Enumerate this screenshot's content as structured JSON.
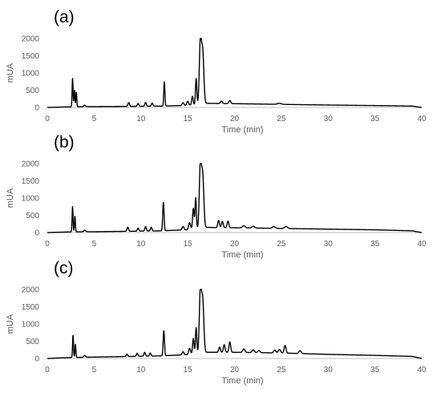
{
  "chart_data": [
    {
      "type": "line",
      "label": "(a)",
      "xlabel": "Time (min)",
      "ylabel": "mUA",
      "xlim": [
        0,
        40
      ],
      "ylim": [
        0,
        2000
      ],
      "xticks": [
        0,
        5,
        10,
        15,
        20,
        25,
        30,
        35,
        40
      ],
      "yticks": [
        0,
        500,
        1000,
        1500,
        2000
      ],
      "grid": false,
      "baseline": [
        [
          0,
          0
        ],
        [
          2.5,
          20
        ],
        [
          5,
          25
        ],
        [
          8,
          30
        ],
        [
          12,
          40
        ],
        [
          15,
          60
        ],
        [
          17,
          120
        ],
        [
          20,
          110
        ],
        [
          25,
          90
        ],
        [
          30,
          70
        ],
        [
          35,
          55
        ],
        [
          39,
          40
        ],
        [
          40,
          0
        ]
      ],
      "peaks": [
        [
          2.7,
          820,
          0.05
        ],
        [
          2.9,
          480,
          0.05
        ],
        [
          3.1,
          420,
          0.05
        ],
        [
          4.0,
          40,
          0.1
        ],
        [
          8.7,
          110,
          0.08
        ],
        [
          9.7,
          80,
          0.08
        ],
        [
          10.5,
          110,
          0.08
        ],
        [
          11.2,
          90,
          0.08
        ],
        [
          12.5,
          700,
          0.06
        ],
        [
          14.5,
          80,
          0.1
        ],
        [
          15.0,
          120,
          0.1
        ],
        [
          15.5,
          250,
          0.08
        ],
        [
          15.9,
          750,
          0.07
        ],
        [
          16.35,
          1820,
          0.11
        ],
        [
          16.6,
          1500,
          0.12
        ],
        [
          18.6,
          70,
          0.1
        ],
        [
          19.5,
          90,
          0.1
        ],
        [
          24.8,
          30,
          0.2
        ]
      ]
    },
    {
      "type": "line",
      "label": "(b)",
      "xlabel": "Time (min)",
      "ylabel": "mUA",
      "xlim": [
        0,
        40
      ],
      "ylim": [
        0,
        2000
      ],
      "xticks": [
        0,
        5,
        10,
        15,
        20,
        25,
        30,
        35,
        40
      ],
      "yticks": [
        0,
        500,
        1000,
        1500,
        2000
      ],
      "grid": false,
      "baseline": [
        [
          0,
          0
        ],
        [
          2.5,
          20
        ],
        [
          5,
          25
        ],
        [
          8,
          35
        ],
        [
          12,
          50
        ],
        [
          15,
          80
        ],
        [
          17,
          150
        ],
        [
          20,
          140
        ],
        [
          25,
          120
        ],
        [
          30,
          100
        ],
        [
          35,
          80
        ],
        [
          39,
          50
        ],
        [
          40,
          0
        ]
      ],
      "peaks": [
        [
          2.7,
          730,
          0.05
        ],
        [
          2.95,
          450,
          0.05
        ],
        [
          4.0,
          50,
          0.1
        ],
        [
          8.6,
          120,
          0.08
        ],
        [
          9.7,
          90,
          0.08
        ],
        [
          10.5,
          130,
          0.08
        ],
        [
          11.1,
          110,
          0.08
        ],
        [
          12.4,
          820,
          0.07
        ],
        [
          14.5,
          100,
          0.1
        ],
        [
          15.2,
          200,
          0.1
        ],
        [
          15.6,
          600,
          0.08
        ],
        [
          15.85,
          900,
          0.07
        ],
        [
          16.35,
          1850,
          0.11
        ],
        [
          16.6,
          1500,
          0.12
        ],
        [
          18.3,
          210,
          0.09
        ],
        [
          18.7,
          180,
          0.09
        ],
        [
          19.3,
          190,
          0.09
        ],
        [
          21.0,
          60,
          0.15
        ],
        [
          22.0,
          50,
          0.15
        ],
        [
          24.2,
          50,
          0.15
        ],
        [
          25.5,
          60,
          0.15
        ]
      ]
    },
    {
      "type": "line",
      "label": "(c)",
      "xlabel": "Time (min)",
      "ylabel": "mUA",
      "xlim": [
        0,
        40
      ],
      "ylim": [
        0,
        2000
      ],
      "xticks": [
        0,
        5,
        10,
        15,
        20,
        25,
        30,
        35,
        40
      ],
      "yticks": [
        0,
        500,
        1000,
        1500,
        2000
      ],
      "grid": false,
      "baseline": [
        [
          0,
          0
        ],
        [
          2.5,
          30
        ],
        [
          5,
          40
        ],
        [
          8,
          55
        ],
        [
          12,
          75
        ],
        [
          15,
          110
        ],
        [
          17,
          180
        ],
        [
          20,
          180
        ],
        [
          25,
          160
        ],
        [
          30,
          120
        ],
        [
          35,
          90
        ],
        [
          39,
          60
        ],
        [
          40,
          0
        ]
      ],
      "peaks": [
        [
          2.75,
          640,
          0.05
        ],
        [
          3.0,
          380,
          0.05
        ],
        [
          4.0,
          50,
          0.1
        ],
        [
          8.5,
          70,
          0.08
        ],
        [
          9.6,
          90,
          0.08
        ],
        [
          10.4,
          110,
          0.08
        ],
        [
          11.0,
          90,
          0.08
        ],
        [
          12.45,
          720,
          0.07
        ],
        [
          14.5,
          90,
          0.1
        ],
        [
          15.2,
          180,
          0.1
        ],
        [
          15.6,
          450,
          0.08
        ],
        [
          15.9,
          750,
          0.07
        ],
        [
          16.35,
          1810,
          0.11
        ],
        [
          16.6,
          1500,
          0.12
        ],
        [
          18.4,
          150,
          0.09
        ],
        [
          18.9,
          220,
          0.09
        ],
        [
          19.5,
          300,
          0.09
        ],
        [
          21.0,
          100,
          0.12
        ],
        [
          22.0,
          80,
          0.12
        ],
        [
          22.6,
          60,
          0.12
        ],
        [
          24.3,
          80,
          0.12
        ],
        [
          24.8,
          100,
          0.12
        ],
        [
          25.4,
          220,
          0.1
        ],
        [
          27.0,
          80,
          0.12
        ]
      ]
    }
  ]
}
